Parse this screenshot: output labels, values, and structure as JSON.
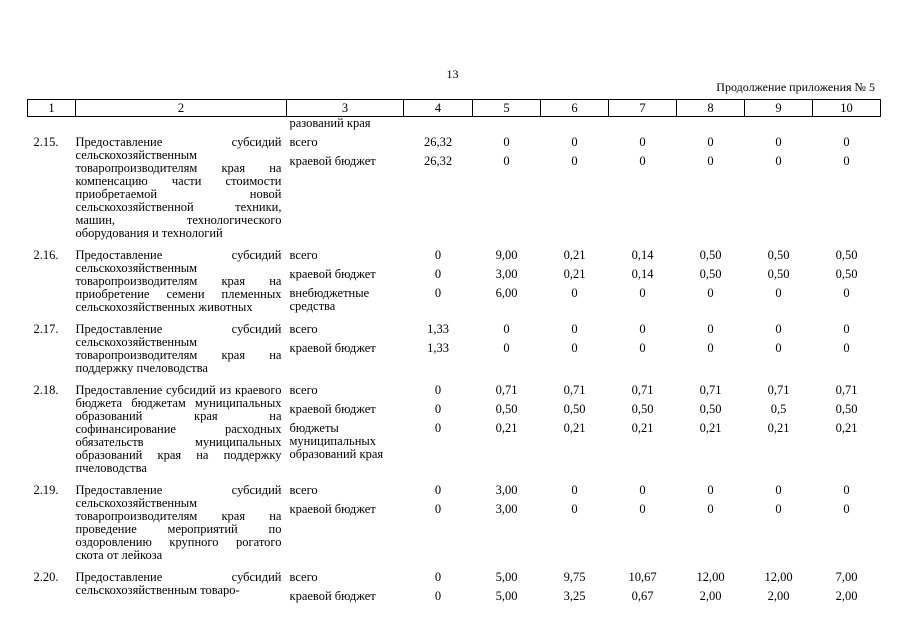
{
  "page_number": "13",
  "continuation": "Продолжение приложения № 5",
  "header": [
    "1",
    "2",
    "3",
    "4",
    "5",
    "6",
    "7",
    "8",
    "9",
    "10"
  ],
  "top_continuation_text": "разований края",
  "rows": [
    {
      "id": "2.15.",
      "description": "Предоставление субсидий сельскохозяйственным товаропроизводителям края на компенсацию части стоимости приобретаемой новой сельскохозяйственной техники, машин, технологического оборудования и технологий",
      "sources": [
        {
          "label": "всего",
          "values": [
            "26,32",
            "0",
            "0",
            "0",
            "0",
            "0",
            "0"
          ]
        },
        {
          "label": "краевой бюджет",
          "values": [
            "26,32",
            "0",
            "0",
            "0",
            "0",
            "0",
            "0"
          ]
        }
      ]
    },
    {
      "id": "2.16.",
      "description": "Предоставление субсидий сельскохозяйственным товаропроизводителям края на приобретение семени племенных сельскохозяйственных животных",
      "sources": [
        {
          "label": "всего",
          "values": [
            "0",
            "9,00",
            "0,21",
            "0,14",
            "0,50",
            "0,50",
            "0,50"
          ]
        },
        {
          "label": "краевой бюджет",
          "values": [
            "0",
            "3,00",
            "0,21",
            "0,14",
            "0,50",
            "0,50",
            "0,50"
          ]
        },
        {
          "label": "внебюджетные средства",
          "values": [
            "0",
            "6,00",
            "0",
            "0",
            "0",
            "0",
            "0"
          ]
        }
      ]
    },
    {
      "id": "2.17.",
      "description": "Предоставление субсидий сельскохозяйственным товаропроизводителям края на поддержку пчеловодства",
      "sources": [
        {
          "label": "всего",
          "values": [
            "1,33",
            "0",
            "0",
            "0",
            "0",
            "0",
            "0"
          ]
        },
        {
          "label": "краевой бюджет",
          "values": [
            "1,33",
            "0",
            "0",
            "0",
            "0",
            "0",
            "0"
          ]
        }
      ]
    },
    {
      "id": "2.18.",
      "description": "Предоставление субсидий из краевого бюджета бюджетам муниципальных образований края на софинансирование расходных обязательств муниципальных образований края на поддержку пчеловодства",
      "sources": [
        {
          "label": "всего",
          "values": [
            "0",
            "0,71",
            "0,71",
            "0,71",
            "0,71",
            "0,71",
            "0,71"
          ]
        },
        {
          "label": "краевой бюджет",
          "values": [
            "0",
            "0,50",
            "0,50",
            "0,50",
            "0,50",
            "0,5",
            "0,50"
          ]
        },
        {
          "label": "бюджеты муниципальных образований края",
          "values": [
            "0",
            "0,21",
            "0,21",
            "0,21",
            "0,21",
            "0,21",
            "0,21"
          ]
        }
      ]
    },
    {
      "id": "2.19.",
      "description": "Предоставление субсидий сельскохозяйственным товаропроизводителям края на проведение мероприятий по оздоровлению крупного рогатого скота от лейкоза",
      "sources": [
        {
          "label": "всего",
          "values": [
            "0",
            "3,00",
            "0",
            "0",
            "0",
            "0",
            "0"
          ]
        },
        {
          "label": "краевой бюджет",
          "values": [
            "0",
            "3,00",
            "0",
            "0",
            "0",
            "0",
            "0"
          ]
        }
      ]
    },
    {
      "id": "2.20.",
      "description": "Предоставление субсидий сельскохозяйственным товаро-",
      "sources": [
        {
          "label": "всего",
          "values": [
            "0",
            "5,00",
            "9,75",
            "10,67",
            "12,00",
            "12,00",
            "7,00"
          ]
        },
        {
          "label": "краевой бюджет",
          "values": [
            "0",
            "5,00",
            "3,25",
            "0,67",
            "2,00",
            "2,00",
            "2,00"
          ]
        }
      ]
    }
  ]
}
